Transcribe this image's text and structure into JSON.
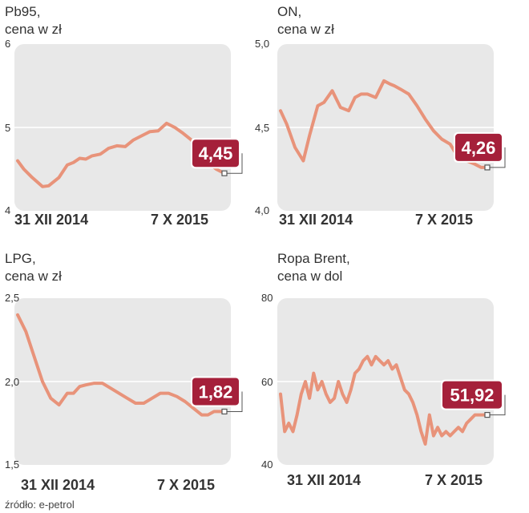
{
  "source_note": "źródło: e-petrol",
  "colors": {
    "line": "#e8937a",
    "badge": "#a5203a",
    "badge_text": "#ffffff",
    "panel": "#e8e8e8",
    "grid": "#ffffff",
    "text": "#333333"
  },
  "chart_data": [
    {
      "type": "line",
      "title": "Pb95,",
      "subtitle": "cena w zł",
      "ylim": [
        4,
        6
      ],
      "yticks": [
        "6",
        "5",
        "4"
      ],
      "ytick_values": [
        6,
        5,
        4
      ],
      "xtick_labels": [
        "31 XII 2014",
        "7 X 2015"
      ],
      "last_value_label": "4,45",
      "x": [
        0,
        0.03,
        0.07,
        0.12,
        0.15,
        0.2,
        0.24,
        0.27,
        0.3,
        0.33,
        0.36,
        0.4,
        0.44,
        0.48,
        0.52,
        0.56,
        0.6,
        0.64,
        0.68,
        0.72,
        0.76,
        0.8,
        0.84,
        0.88,
        0.92,
        0.96,
        1.0
      ],
      "values": [
        4.6,
        4.5,
        4.4,
        4.29,
        4.3,
        4.4,
        4.55,
        4.58,
        4.63,
        4.62,
        4.66,
        4.68,
        4.75,
        4.78,
        4.77,
        4.85,
        4.9,
        4.95,
        4.96,
        5.05,
        5.0,
        4.93,
        4.85,
        4.72,
        4.58,
        4.5,
        4.45
      ]
    },
    {
      "type": "line",
      "title": "ON,",
      "subtitle": "cena w zł",
      "ylim": [
        4.0,
        5.0
      ],
      "yticks": [
        "5,0",
        "4,5",
        "4,0"
      ],
      "ytick_values": [
        5.0,
        4.5,
        4.0
      ],
      "xtick_labels": [
        "31 XII 2014",
        "7 X 2015"
      ],
      "last_value_label": "4,26",
      "x": [
        0,
        0.03,
        0.07,
        0.11,
        0.14,
        0.18,
        0.21,
        0.25,
        0.29,
        0.33,
        0.36,
        0.39,
        0.42,
        0.46,
        0.5,
        0.53,
        0.55,
        0.58,
        0.62,
        0.66,
        0.7,
        0.74,
        0.78,
        0.82,
        0.86,
        0.9,
        0.94,
        0.97,
        1.0
      ],
      "values": [
        4.6,
        4.52,
        4.38,
        4.3,
        4.45,
        4.63,
        4.65,
        4.72,
        4.62,
        4.6,
        4.68,
        4.7,
        4.7,
        4.68,
        4.78,
        4.76,
        4.75,
        4.73,
        4.7,
        4.63,
        4.55,
        4.48,
        4.43,
        4.4,
        4.32,
        4.3,
        4.28,
        4.26,
        4.26
      ]
    },
    {
      "type": "line",
      "title": "LPG,",
      "subtitle": "cena w zł",
      "ylim": [
        1.5,
        2.5
      ],
      "yticks": [
        "2,5",
        "2,0",
        "1,5"
      ],
      "ytick_values": [
        2.5,
        2.0,
        1.5
      ],
      "xtick_labels": [
        "31 XII 2014",
        "7 X 2015"
      ],
      "last_value_label": "1,82",
      "x": [
        0,
        0.04,
        0.08,
        0.12,
        0.16,
        0.2,
        0.24,
        0.27,
        0.3,
        0.33,
        0.37,
        0.41,
        0.45,
        0.49,
        0.53,
        0.57,
        0.61,
        0.65,
        0.69,
        0.73,
        0.77,
        0.81,
        0.85,
        0.89,
        0.92,
        0.95,
        0.98,
        1.0
      ],
      "values": [
        2.4,
        2.3,
        2.15,
        2.0,
        1.9,
        1.86,
        1.93,
        1.93,
        1.97,
        1.98,
        1.99,
        1.99,
        1.96,
        1.93,
        1.9,
        1.87,
        1.87,
        1.9,
        1.93,
        1.93,
        1.91,
        1.88,
        1.84,
        1.8,
        1.8,
        1.82,
        1.82,
        1.82
      ]
    },
    {
      "type": "line",
      "title": "Ropa Brent,",
      "subtitle": "cena w dol",
      "ylim": [
        40,
        80
      ],
      "yticks": [
        "80",
        "60",
        "40"
      ],
      "ytick_values": [
        80,
        60,
        40
      ],
      "xtick_labels": [
        "31 XII 2014",
        "7 X 2015"
      ],
      "last_value_label": "51,92",
      "x": [
        0,
        0.02,
        0.04,
        0.06,
        0.08,
        0.1,
        0.12,
        0.14,
        0.16,
        0.18,
        0.2,
        0.22,
        0.24,
        0.26,
        0.28,
        0.3,
        0.32,
        0.34,
        0.36,
        0.38,
        0.4,
        0.42,
        0.44,
        0.46,
        0.48,
        0.5,
        0.52,
        0.54,
        0.56,
        0.58,
        0.6,
        0.62,
        0.64,
        0.66,
        0.68,
        0.7,
        0.72,
        0.74,
        0.76,
        0.78,
        0.8,
        0.82,
        0.84,
        0.86,
        0.88,
        0.9,
        0.92,
        0.94,
        0.96,
        0.98,
        1.0
      ],
      "values": [
        57,
        48,
        50,
        48,
        52,
        57,
        60,
        56,
        62,
        58,
        60,
        57,
        55,
        56,
        60,
        57,
        55,
        58,
        62,
        63,
        65,
        66,
        64,
        66,
        65,
        64,
        65,
        63,
        64,
        61,
        58,
        57,
        55,
        52,
        48,
        45,
        52,
        47,
        49,
        47,
        48,
        47,
        48,
        49,
        48,
        50,
        51,
        52,
        52,
        52,
        52
      ]
    }
  ]
}
